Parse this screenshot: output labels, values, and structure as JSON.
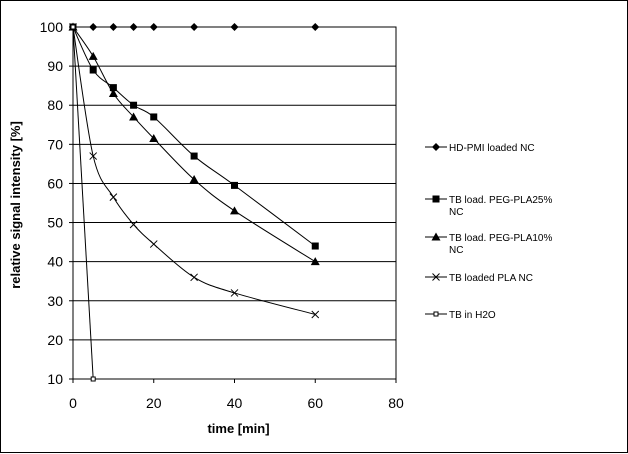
{
  "chart_data": {
    "type": "line",
    "title": "",
    "xlabel": "time [min]",
    "ylabel": "relative signal intensity [%]",
    "xlim": [
      0,
      80
    ],
    "ylim": [
      10,
      100
    ],
    "xticks": [
      0,
      20,
      40,
      60,
      80
    ],
    "yticks": [
      10,
      20,
      30,
      40,
      50,
      60,
      70,
      80,
      90,
      100
    ],
    "grid": "horizontal",
    "legend_position": "right",
    "series": [
      {
        "name": "HD-PMI loaded NC",
        "marker": "diamond",
        "x": [
          0,
          5,
          10,
          15,
          20,
          30,
          40,
          60
        ],
        "y": [
          100,
          100,
          100,
          100,
          100,
          100,
          100,
          100
        ]
      },
      {
        "name": "TB load. PEG-PLA25% NC",
        "legend_lines": [
          "TB load. PEG-PLA25%",
          "NC"
        ],
        "marker": "square",
        "x": [
          0,
          5,
          10,
          15,
          20,
          30,
          40,
          60
        ],
        "y": [
          100,
          89,
          84.5,
          80,
          77,
          67,
          59.5,
          44
        ]
      },
      {
        "name": "TB load. PEG-PLA10% NC",
        "legend_lines": [
          "TB load. PEG-PLA10%",
          "NC"
        ],
        "marker": "triangle",
        "x": [
          0,
          5,
          10,
          15,
          20,
          30,
          40,
          60
        ],
        "y": [
          100,
          92.5,
          83,
          77,
          71.5,
          61,
          53,
          40
        ]
      },
      {
        "name": "TB loaded  PLA NC",
        "marker": "x",
        "x": [
          0,
          5,
          10,
          15,
          20,
          30,
          40,
          60
        ],
        "y": [
          100,
          67,
          56.5,
          49.5,
          44.5,
          36,
          32,
          26.5
        ]
      },
      {
        "name": "TB in H2O",
        "marker": "small-square",
        "x": [
          0,
          5
        ],
        "y": [
          100,
          10
        ]
      }
    ]
  }
}
